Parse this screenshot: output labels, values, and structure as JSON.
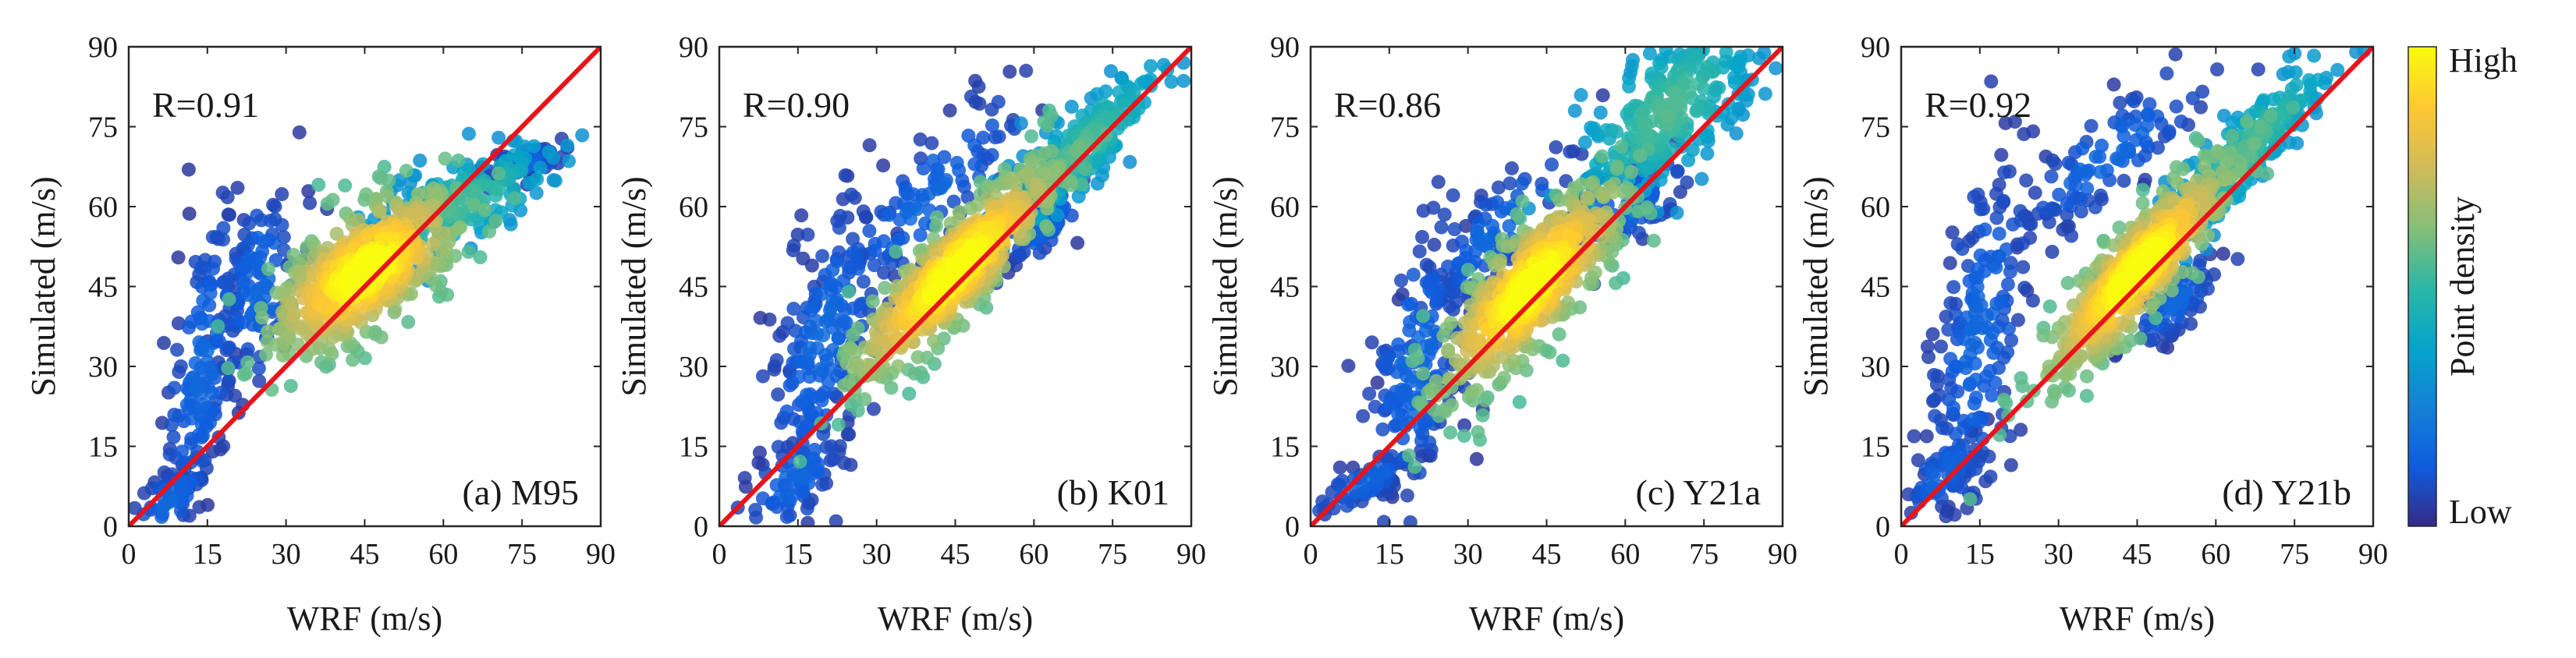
{
  "chart_data": [
    {
      "type": "scatter",
      "panel": "(a) M95",
      "r_text": "R=0.91",
      "xlabel": "WRF (m/s)",
      "ylabel": "Simulated (m/s)",
      "xlim": [
        0,
        90
      ],
      "ylim": [
        0,
        90
      ],
      "xticks": [
        0,
        15,
        30,
        45,
        60,
        75,
        90
      ],
      "yticks": [
        0,
        15,
        30,
        45,
        60,
        75,
        90
      ],
      "reference_line": {
        "from": [
          0,
          0
        ],
        "to": [
          90,
          90
        ],
        "color": "#e8141b"
      },
      "clouds": [
        {
          "cx": 45,
          "cy": 48,
          "sx": 9,
          "sy": 6,
          "slope": 0.55,
          "n": 520,
          "density": "high"
        },
        {
          "cx": 62,
          "cy": 60,
          "sx": 10,
          "sy": 4,
          "slope": 0.45,
          "n": 220,
          "density": "mid"
        },
        {
          "cx": 75,
          "cy": 68,
          "sx": 4,
          "sy": 1.5,
          "slope": 0.3,
          "n": 90,
          "density": "low"
        },
        {
          "cx": 14,
          "cy": 30,
          "sx": 4,
          "sy": 14,
          "slope": 2.5,
          "n": 160,
          "density": "low"
        },
        {
          "cx": 25,
          "cy": 45,
          "sx": 4,
          "sy": 10,
          "slope": 0.8,
          "n": 110,
          "density": "low"
        },
        {
          "cx": 8,
          "cy": 5,
          "sx": 4,
          "sy": 3,
          "slope": 0.7,
          "n": 50,
          "density": "low"
        }
      ]
    },
    {
      "type": "scatter",
      "panel": "(b) K01",
      "r_text": "R=0.90",
      "xlabel": "WRF (m/s)",
      "ylabel": "Simulated (m/s)",
      "xlim": [
        0,
        90
      ],
      "ylim": [
        0,
        90
      ],
      "xticks": [
        0,
        15,
        30,
        45,
        60,
        75,
        90
      ],
      "yticks": [
        0,
        15,
        30,
        45,
        60,
        75,
        90
      ],
      "reference_line": {
        "from": [
          0,
          0
        ],
        "to": [
          90,
          90
        ],
        "color": "#e8141b"
      },
      "clouds": [
        {
          "cx": 45,
          "cy": 48,
          "sx": 10,
          "sy": 5,
          "slope": 0.9,
          "n": 560,
          "density": "high"
        },
        {
          "cx": 68,
          "cy": 70,
          "sx": 9,
          "sy": 4,
          "slope": 0.85,
          "n": 230,
          "density": "mid"
        },
        {
          "cx": 62,
          "cy": 57,
          "sx": 4,
          "sy": 3,
          "slope": 0.6,
          "n": 80,
          "density": "low"
        },
        {
          "cx": 20,
          "cy": 35,
          "sx": 6,
          "sy": 12,
          "slope": 1.4,
          "n": 180,
          "density": "low"
        },
        {
          "cx": 40,
          "cy": 62,
          "sx": 10,
          "sy": 6,
          "slope": 0.9,
          "n": 110,
          "density": "low"
        },
        {
          "cx": 14,
          "cy": 8,
          "sx": 5,
          "sy": 4,
          "slope": 0.8,
          "n": 70,
          "density": "low"
        }
      ]
    },
    {
      "type": "scatter",
      "panel": "(c) Y21a",
      "r_text": "R=0.86",
      "xlabel": "WRF (m/s)",
      "ylabel": "Simulated (m/s)",
      "xlim": [
        0,
        90
      ],
      "ylim": [
        0,
        90
      ],
      "xticks": [
        0,
        15,
        30,
        45,
        60,
        75,
        90
      ],
      "yticks": [
        0,
        15,
        30,
        45,
        60,
        75,
        90
      ],
      "reference_line": {
        "from": [
          0,
          0
        ],
        "to": [
          90,
          90
        ],
        "color": "#e8141b"
      },
      "clouds": [
        {
          "cx": 42,
          "cy": 45,
          "sx": 9,
          "sy": 6,
          "slope": 0.9,
          "n": 540,
          "density": "high"
        },
        {
          "cx": 68,
          "cy": 78,
          "sx": 9,
          "sy": 7,
          "slope": 0.7,
          "n": 300,
          "density": "mid"
        },
        {
          "cx": 60,
          "cy": 60,
          "sx": 6,
          "sy": 4,
          "slope": 0.5,
          "n": 100,
          "density": "low"
        },
        {
          "cx": 20,
          "cy": 30,
          "sx": 5,
          "sy": 14,
          "slope": 1.5,
          "n": 160,
          "density": "low"
        },
        {
          "cx": 35,
          "cy": 55,
          "sx": 8,
          "sy": 5,
          "slope": 0.8,
          "n": 100,
          "density": "low"
        },
        {
          "cx": 10,
          "cy": 8,
          "sx": 5,
          "sy": 2,
          "slope": 0.5,
          "n": 60,
          "density": "low"
        }
      ]
    },
    {
      "type": "scatter",
      "panel": "(d) Y21b",
      "r_text": "R=0.92",
      "xlabel": "WRF (m/s)",
      "ylabel": "Simulated (m/s)",
      "xlim": [
        0,
        90
      ],
      "ylim": [
        0,
        90
      ],
      "xticks": [
        0,
        15,
        30,
        45,
        60,
        75,
        90
      ],
      "yticks": [
        0,
        15,
        30,
        45,
        60,
        75,
        90
      ],
      "reference_line": {
        "from": [
          0,
          0
        ],
        "to": [
          90,
          90
        ],
        "color": "#e8141b"
      },
      "clouds": [
        {
          "cx": 45,
          "cy": 48,
          "sx": 9,
          "sy": 5,
          "slope": 1.0,
          "n": 560,
          "density": "high"
        },
        {
          "cx": 65,
          "cy": 70,
          "sx": 9,
          "sy": 4,
          "slope": 0.95,
          "n": 230,
          "density": "mid"
        },
        {
          "cx": 52,
          "cy": 42,
          "sx": 4,
          "sy": 3,
          "slope": 0.8,
          "n": 80,
          "density": "low"
        },
        {
          "cx": 15,
          "cy": 35,
          "sx": 5,
          "sy": 16,
          "slope": 2.0,
          "n": 190,
          "density": "low"
        },
        {
          "cx": 40,
          "cy": 70,
          "sx": 10,
          "sy": 5,
          "slope": 0.7,
          "n": 110,
          "density": "low"
        },
        {
          "cx": 8,
          "cy": 10,
          "sx": 4,
          "sy": 3,
          "slope": 0.8,
          "n": 60,
          "density": "low"
        }
      ]
    }
  ],
  "colorbar": {
    "label": "Point density",
    "high_label": "High",
    "low_label": "Low",
    "colormap": [
      "#352a87",
      "#0f5cdd",
      "#1481d6",
      "#06a4ca",
      "#2eb7a4",
      "#87bf77",
      "#d1bb59",
      "#fec832",
      "#f9fb0e"
    ]
  }
}
